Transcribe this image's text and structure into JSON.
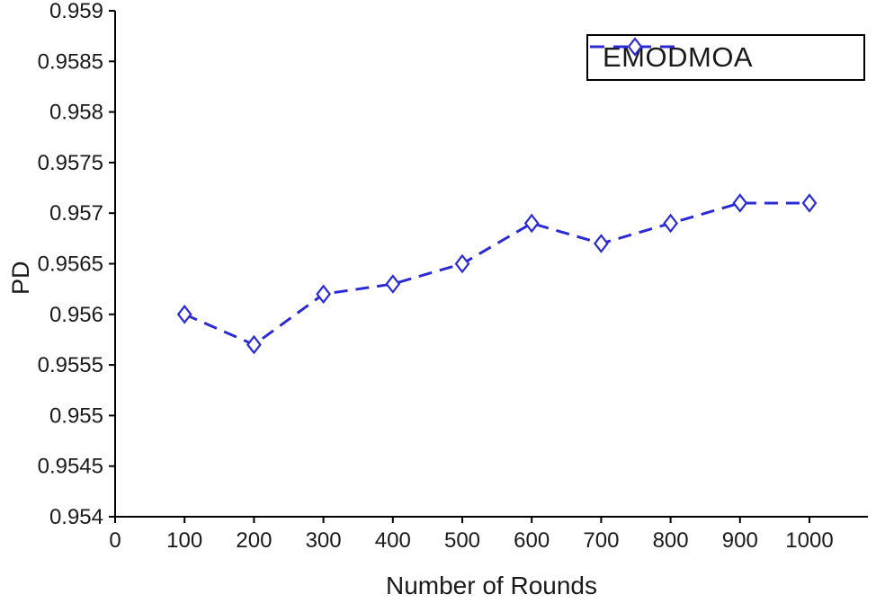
{
  "chart_data": {
    "type": "line",
    "title": "",
    "xlabel": "Number of Rounds",
    "ylabel": "PD",
    "x": [
      100,
      200,
      300,
      400,
      500,
      600,
      700,
      800,
      900,
      1000
    ],
    "series": [
      {
        "name": "EMODMOA",
        "values": [
          0.956,
          0.9557,
          0.9562,
          0.9563,
          0.9565,
          0.9569,
          0.9567,
          0.9569,
          0.9571,
          0.9571
        ],
        "color": "#2b2bd5",
        "line_style": "dashed",
        "marker": "open-diamond"
      }
    ],
    "xlim": [
      0,
      1000
    ],
    "ylim": [
      0.954,
      0.959
    ],
    "x_ticks": [
      0,
      100,
      200,
      300,
      400,
      500,
      600,
      700,
      800,
      900,
      1000
    ],
    "x_tick_labels": [
      "0",
      "100",
      "200",
      "300",
      "400",
      "500",
      "600",
      "700",
      "800",
      "900",
      "1000"
    ],
    "y_ticks": [
      0.954,
      0.9545,
      0.955,
      0.9555,
      0.956,
      0.9565,
      0.957,
      0.9575,
      0.958,
      0.9585,
      0.959
    ],
    "y_tick_labels": [
      "0.954",
      "0.9545",
      "0.955",
      "0.9555",
      "0.956",
      "0.9565",
      "0.957",
      "0.9575",
      "0.958",
      "0.9585",
      "0.959"
    ],
    "grid": false,
    "legend_position": "top-right"
  },
  "labels": {
    "xlabel": "Number of Rounds",
    "ylabel": "PD",
    "legend": "EMODMOA"
  },
  "colors": {
    "line": "#2b2bd5",
    "axis": "#000000",
    "text": "#1a1a1a",
    "background": "#ffffff"
  }
}
